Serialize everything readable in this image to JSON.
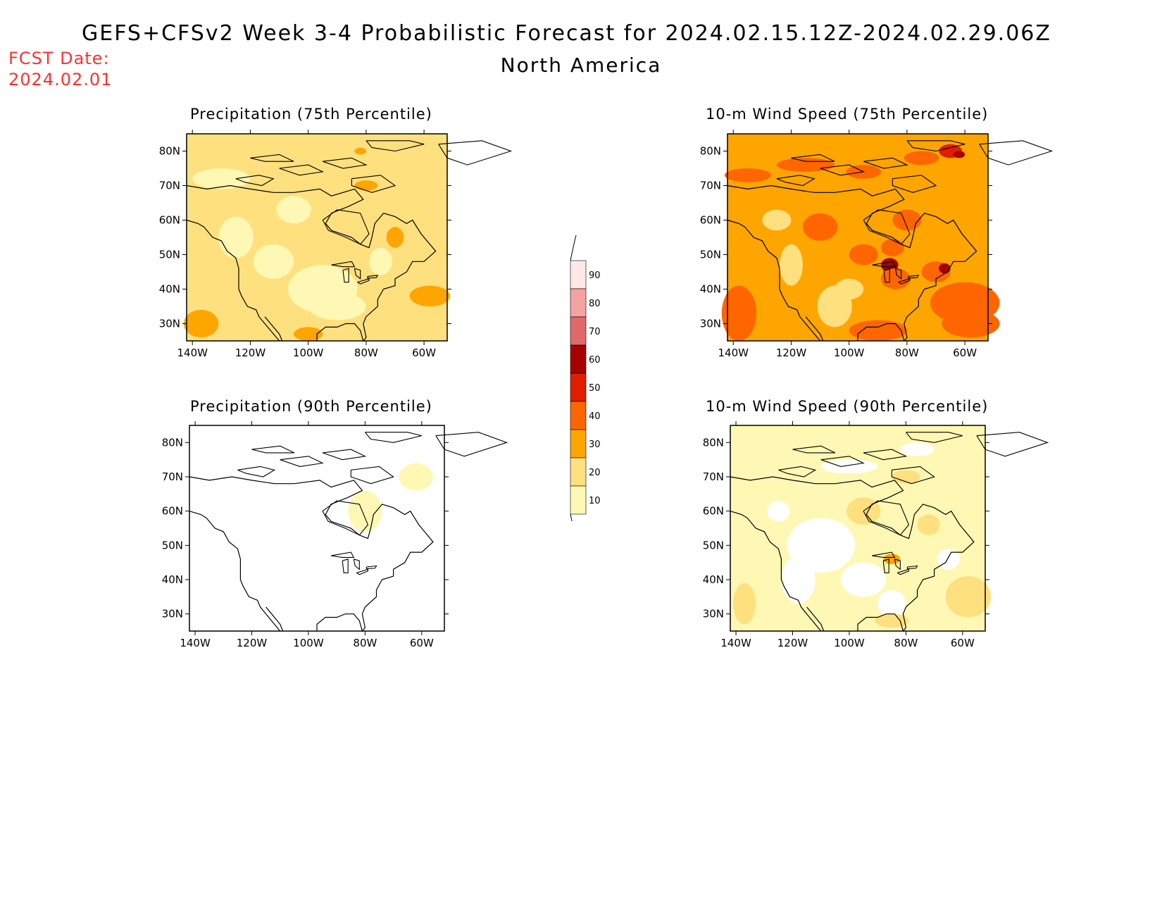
{
  "header": {
    "title": "GEFS+CFSv2 Week 3-4 Probabilistic Forecast for 2024.02.15.12Z-2024.02.29.06Z",
    "region": "North America",
    "fcst_label": "FCST Date:",
    "fcst_date": "2024.02.01"
  },
  "axes": {
    "lat_labels": [
      "80N",
      "70N",
      "60N",
      "50N",
      "40N",
      "30N"
    ],
    "lon_labels": [
      "140W",
      "120W",
      "100W",
      "80W",
      "60W"
    ]
  },
  "panels": [
    {
      "id": "precip75",
      "title": "Precipitation (75th Percentile)",
      "level": "mid"
    },
    {
      "id": "wind75",
      "title": "10-m Wind Speed (75th Percentile)",
      "level": "high"
    },
    {
      "id": "precip90",
      "title": "Precipitation (90th Percentile)",
      "level": "low"
    },
    {
      "id": "wind90",
      "title": "10-m Wind Speed (90th Percentile)",
      "level": "lowmid"
    }
  ],
  "colorbar": {
    "labels": [
      "90",
      "80",
      "70",
      "60",
      "50",
      "40",
      "30",
      "20",
      "10"
    ],
    "colors": [
      "#ffe8e8",
      "#f4a2a2",
      "#e06a6a",
      "#a80000",
      "#e01e00",
      "#ff6600",
      "#ffa500",
      "#ffe07e",
      "#fff8b4"
    ]
  }
}
